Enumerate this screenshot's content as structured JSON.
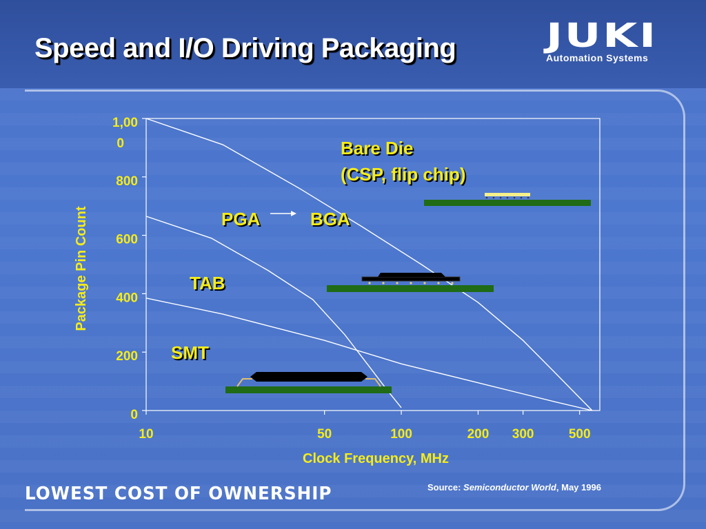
{
  "title": "Speed and I/O Driving Packaging",
  "logo": {
    "name": "JUKI",
    "tagline": "Automation Systems"
  },
  "footer": {
    "tagline": "LOWEST COST OF OWNERSHIP",
    "source_prefix": "Source:",
    "source_publication": "Semiconductor World",
    "source_date": "May 1996"
  },
  "colors": {
    "background": "#4a72c8",
    "label_yellow": "#f5ec1a",
    "board_green": "#1f6b16",
    "chip_black": "#000000",
    "curve": "#ffffff"
  },
  "chart_data": {
    "type": "line",
    "title": "",
    "xlabel": "Clock Frequency, MHz",
    "ylabel": "Package Pin Count",
    "x_scale": "log",
    "xlim": [
      10,
      600
    ],
    "ylim": [
      0,
      1000
    ],
    "x_ticks": [
      10,
      50,
      100,
      200,
      300,
      500
    ],
    "x_tick_labels": [
      "10",
      "50",
      "100",
      "200",
      "300",
      "500"
    ],
    "y_ticks": [
      0,
      200,
      400,
      600,
      800,
      1000
    ],
    "y_tick_labels": [
      "0",
      "200",
      "400",
      "600",
      "800",
      "1,000"
    ],
    "grid": false,
    "series": [
      {
        "points": [
          [
            10,
            1000
          ],
          [
            20,
            910
          ],
          [
            40,
            760
          ],
          [
            70,
            630
          ],
          [
            120,
            500
          ],
          [
            200,
            370
          ],
          [
            300,
            240
          ],
          [
            400,
            130
          ],
          [
            560,
            0
          ]
        ]
      },
      {
        "points": [
          [
            10,
            665
          ],
          [
            18,
            590
          ],
          [
            30,
            480
          ],
          [
            45,
            380
          ],
          [
            60,
            260
          ],
          [
            75,
            150
          ],
          [
            88,
            70
          ],
          [
            100,
            10
          ]
        ]
      },
      {
        "points": [
          [
            10,
            385
          ],
          [
            20,
            330
          ],
          [
            50,
            240
          ],
          [
            100,
            160
          ],
          [
            200,
            95
          ],
          [
            400,
            30
          ],
          [
            560,
            0
          ]
        ]
      }
    ],
    "region_labels": [
      {
        "text": "SMT"
      },
      {
        "text": "TAB"
      },
      {
        "text": "PGA"
      },
      {
        "text": "BGA"
      },
      {
        "text": "Bare Die"
      },
      {
        "text": "(CSP, flip chip)"
      }
    ]
  }
}
